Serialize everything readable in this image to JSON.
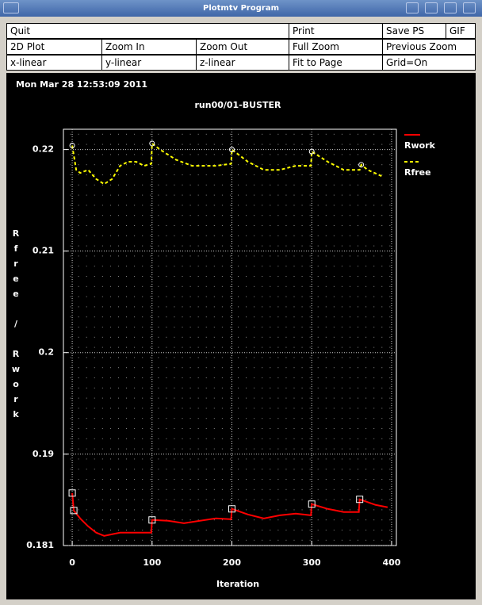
{
  "window": {
    "title": "Plotmtv Program"
  },
  "menu": {
    "rows": [
      [
        "Quit",
        "Print",
        "Save PS",
        "GIF"
      ],
      [
        "2D Plot",
        "Zoom In",
        "Zoom Out",
        "Full Zoom",
        "Previous Zoom"
      ],
      [
        "x-linear",
        "y-linear",
        "z-linear",
        "Fit to Page",
        "Grid=On"
      ]
    ]
  },
  "timestamp": "Mon Mar 28 12:53:09 2011",
  "chart_data": {
    "type": "line",
    "title": "run00/01-BUSTER",
    "x_label": "Iteration",
    "y_label": "Rfree / Rwork",
    "xlim": [
      -11,
      406
    ],
    "xticks": [
      0,
      100,
      200,
      300,
      400
    ],
    "ylim": [
      0.181,
      0.222
    ],
    "yticks": [
      0.181,
      0.19,
      0.2,
      0.21,
      0.22
    ],
    "grid": true,
    "legend": "right",
    "series": [
      {
        "name": "Rwork",
        "color": "#ff0000",
        "dash": false,
        "x": [
          0,
          2,
          10,
          20,
          30,
          40,
          50,
          60,
          80,
          99,
          100,
          120,
          140,
          160,
          180,
          199,
          200,
          220,
          240,
          260,
          280,
          299,
          300,
          320,
          340,
          359,
          360,
          380,
          395
        ],
        "values": [
          0.18617,
          0.18445,
          0.18367,
          0.18289,
          0.18227,
          0.18195,
          0.18211,
          0.18227,
          0.18227,
          0.18227,
          0.18352,
          0.18344,
          0.1832,
          0.18344,
          0.18367,
          0.18359,
          0.18461,
          0.18406,
          0.18367,
          0.18398,
          0.18414,
          0.18398,
          0.18508,
          0.18461,
          0.1843,
          0.1843,
          0.18555,
          0.185,
          0.18477
        ]
      },
      {
        "name": "Rfree",
        "color": "#ffff00",
        "dash": true,
        "x": [
          0,
          5,
          10,
          20,
          30,
          40,
          50,
          60,
          70,
          80,
          90,
          99,
          100,
          110,
          130,
          150,
          180,
          199,
          200,
          220,
          240,
          260,
          280,
          299,
          300,
          320,
          340,
          360,
          362,
          370,
          390
        ],
        "values": [
          0.2204,
          0.218,
          0.2177,
          0.218,
          0.2171,
          0.2166,
          0.2171,
          0.2184,
          0.2188,
          0.2188,
          0.2184,
          0.2186,
          0.2206,
          0.22,
          0.219,
          0.2184,
          0.2184,
          0.2186,
          0.22,
          0.2188,
          0.218,
          0.218,
          0.2184,
          0.2184,
          0.2198,
          0.2188,
          0.218,
          0.218,
          0.2185,
          0.218,
          0.2173
        ]
      }
    ]
  }
}
